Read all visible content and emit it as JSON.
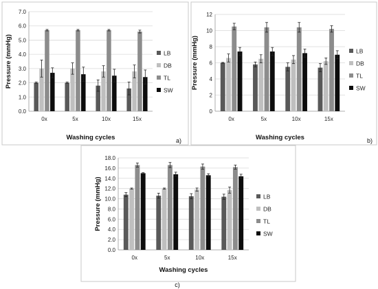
{
  "figure": {
    "colors": {
      "LB": "#595959",
      "DB": "#bfbfbf",
      "TL": "#8c8c8c",
      "SW": "#0d0d0d"
    }
  },
  "chart_data": [
    {
      "type": "bar",
      "panel": "a)",
      "categories": [
        "0x",
        "5x",
        "10x",
        "15x"
      ],
      "ylabel": "Pressure (mmHg)",
      "xlabel": "Washing cycles",
      "ylim": [
        0,
        7
      ],
      "yticks": [
        "0.0",
        "1.0",
        "2.0",
        "3.0",
        "4.0",
        "5.0",
        "6.0",
        "7.0"
      ],
      "legend": "right",
      "grid": true,
      "series": [
        {
          "name": "LB",
          "values": [
            2.0,
            2.0,
            1.8,
            1.6
          ],
          "errors": [
            0.05,
            0.05,
            0.4,
            0.45
          ]
        },
        {
          "name": "DB",
          "values": [
            3.0,
            3.0,
            2.8,
            2.8
          ],
          "errors": [
            0.6,
            0.4,
            0.4,
            0.45
          ]
        },
        {
          "name": "TL",
          "values": [
            5.7,
            5.7,
            5.7,
            5.6
          ],
          "errors": [
            0.05,
            0.05,
            0.05,
            0.1
          ]
        },
        {
          "name": "SW",
          "values": [
            2.7,
            2.6,
            2.5,
            2.4
          ],
          "errors": [
            0.35,
            0.5,
            0.45,
            0.5
          ]
        }
      ]
    },
    {
      "type": "bar",
      "panel": "b)",
      "categories": [
        "0x",
        "5x",
        "10x",
        "15x"
      ],
      "ylabel": "Pressure (mmHg)",
      "xlabel": "Washing cycles",
      "ylim": [
        0,
        12
      ],
      "yticks": [
        "0",
        "2",
        "4",
        "6",
        "8",
        "10",
        "12"
      ],
      "legend": "right",
      "grid": true,
      "series": [
        {
          "name": "LB",
          "values": [
            6.0,
            5.8,
            5.5,
            5.4
          ],
          "errors": [
            0.05,
            0.3,
            0.5,
            0.5
          ]
        },
        {
          "name": "DB",
          "values": [
            6.6,
            6.5,
            6.4,
            6.2
          ],
          "errors": [
            0.5,
            0.5,
            0.5,
            0.4
          ]
        },
        {
          "name": "TL",
          "values": [
            10.5,
            10.4,
            10.4,
            10.2
          ],
          "errors": [
            0.4,
            0.6,
            0.6,
            0.4
          ]
        },
        {
          "name": "SW",
          "values": [
            7.4,
            7.4,
            7.2,
            7.0
          ],
          "errors": [
            0.5,
            0.5,
            0.5,
            0.5
          ]
        }
      ]
    },
    {
      "type": "bar",
      "panel": "c)",
      "categories": [
        "0x",
        "5x",
        "10x",
        "15x"
      ],
      "ylabel": "Pressure (mmHg)",
      "xlabel": "Washing cycles",
      "ylim": [
        0,
        18
      ],
      "yticks": [
        "0.0",
        "2.0",
        "4.0",
        "6.0",
        "8.0",
        "10.0",
        "12.0",
        "14.0",
        "16.0",
        "18.0"
      ],
      "legend": "right",
      "grid": true,
      "series": [
        {
          "name": "LB",
          "values": [
            10.8,
            10.6,
            10.5,
            10.4
          ],
          "errors": [
            0.4,
            0.5,
            0.5,
            0.5
          ]
        },
        {
          "name": "DB",
          "values": [
            12.0,
            12.0,
            11.8,
            11.7
          ],
          "errors": [
            0.1,
            0.1,
            0.3,
            0.6
          ]
        },
        {
          "name": "TL",
          "values": [
            16.6,
            16.6,
            16.3,
            16.2
          ],
          "errors": [
            0.4,
            0.5,
            0.5,
            0.4
          ]
        },
        {
          "name": "SW",
          "values": [
            15.0,
            14.8,
            14.6,
            14.4
          ],
          "errors": [
            0.1,
            0.4,
            0.3,
            0.4
          ]
        }
      ]
    }
  ]
}
